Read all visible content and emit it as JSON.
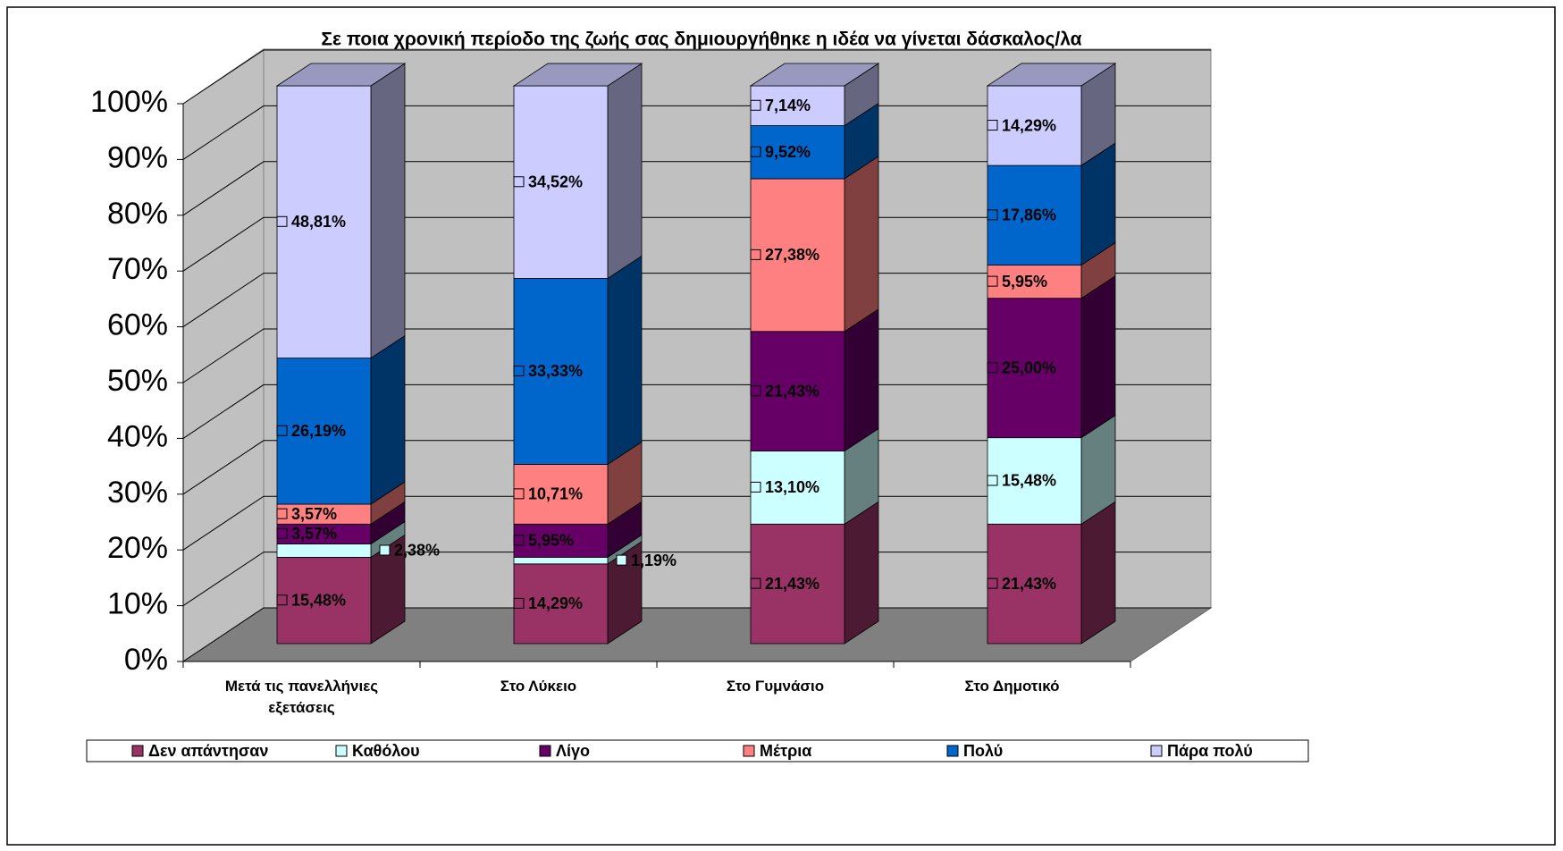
{
  "chart_data": {
    "type": "bar3d_stacked",
    "title": "Σε ποια χρονική περίοδο της ζωής σας δημιουργήθηκε η ιδέα να γίνεται δάσκαλος/λα",
    "categories": [
      "Μετά τις πανελλήνιες εξετάσεις",
      "Στο Λύκειο",
      "Στο Γυμνάσιο",
      "Στο Δημοτικό"
    ],
    "series": [
      {
        "name": "Δεν απάντησαν",
        "color": "#993366",
        "values": [
          15.48,
          14.29,
          21.43,
          21.43
        ],
        "value_labels": [
          "15,48%",
          "14,29%",
          "21,43%",
          "21,43%"
        ]
      },
      {
        "name": "Καθόλου",
        "color": "#ccffff",
        "values": [
          2.38,
          1.19,
          13.1,
          15.48
        ],
        "value_labels": [
          "2,38%",
          "1,19%",
          "13,10%",
          "15,48%"
        ]
      },
      {
        "name": "Λίγο",
        "color": "#660066",
        "values": [
          3.57,
          5.95,
          21.43,
          25.0
        ],
        "value_labels": [
          "3,57%",
          "5,95%",
          "21,43%",
          "25,00%"
        ]
      },
      {
        "name": "Μέτρια",
        "color": "#ff8080",
        "values": [
          3.57,
          10.71,
          27.38,
          5.95
        ],
        "value_labels": [
          "3,57%",
          "10,71%",
          "27,38%",
          "5,95%"
        ]
      },
      {
        "name": "Πολύ",
        "color": "#0066cc",
        "values": [
          26.19,
          33.33,
          9.52,
          17.86
        ],
        "value_labels": [
          "26,19%",
          "33,33%",
          "9,52%",
          "17,86%"
        ]
      },
      {
        "name": "Πάρα πολύ",
        "color": "#ccccff",
        "values": [
          48.81,
          34.52,
          7.14,
          14.29
        ],
        "value_labels": [
          "48,81%",
          "34,52%",
          "7,14%",
          "14,29%"
        ]
      }
    ],
    "ylim": [
      0,
      100
    ],
    "yticks": [
      {
        "value": 0,
        "label": "0%"
      },
      {
        "value": 10,
        "label": "10%"
      },
      {
        "value": 20,
        "label": "20%"
      },
      {
        "value": 30,
        "label": "30%"
      },
      {
        "value": 40,
        "label": "40%"
      },
      {
        "value": 50,
        "label": "50%"
      },
      {
        "value": 60,
        "label": "60%"
      },
      {
        "value": 70,
        "label": "70%"
      },
      {
        "value": 80,
        "label": "80%"
      },
      {
        "value": 90,
        "label": "90%"
      },
      {
        "value": 100,
        "label": "100%"
      }
    ],
    "grid": true,
    "legend": "bottom"
  }
}
